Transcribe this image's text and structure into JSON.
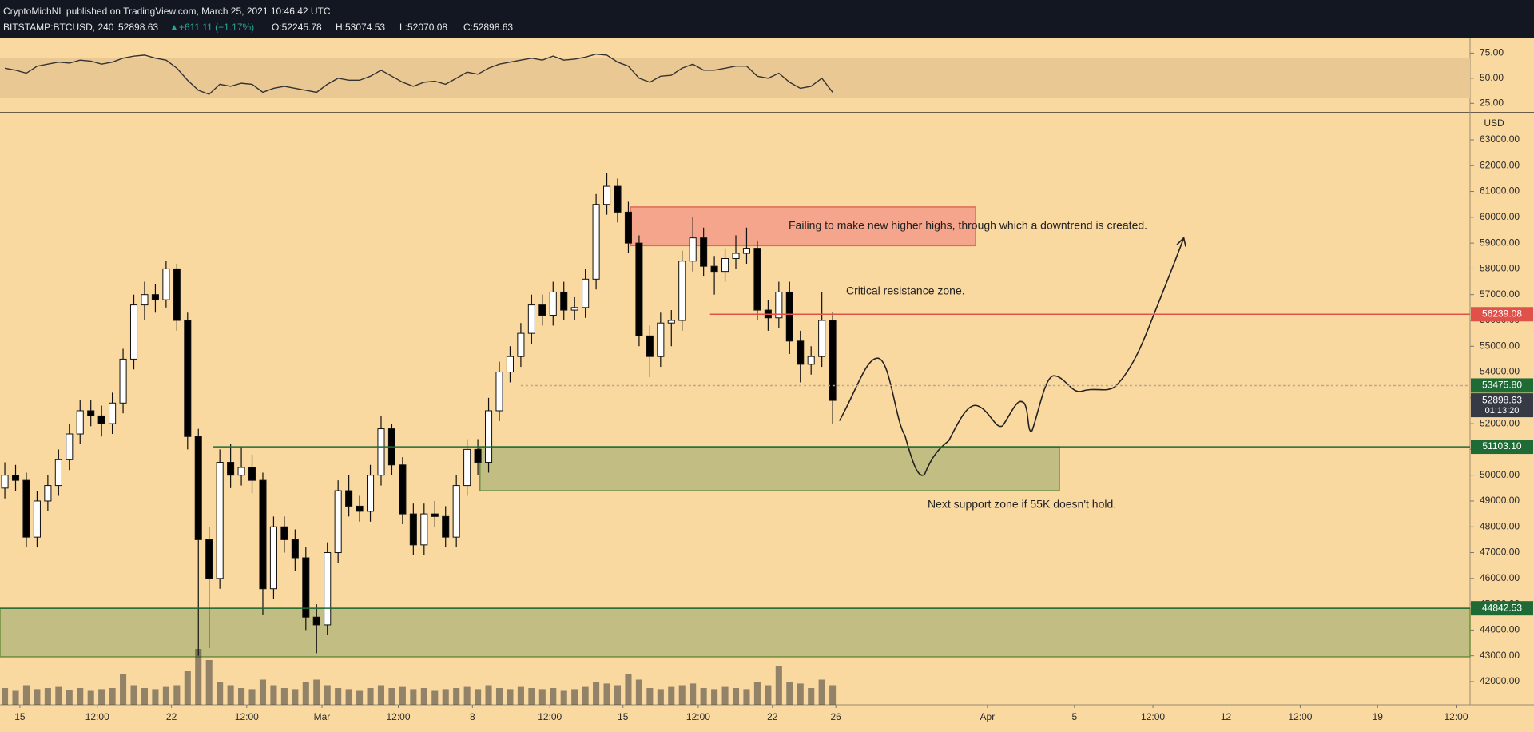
{
  "header": {
    "publisher": "CryptoMichNL published on TradingView.com, March 25, 2021 10:46:42 UTC",
    "symbol": "BITSTAMP:BTCUSD, 240",
    "last": "52898.63",
    "change": "▲+611.11 (+1.17%)",
    "ohlc": [
      "O:52245.78",
      "H:53074.53",
      "L:52070.08",
      "C:52898.63"
    ]
  },
  "chart_data": {
    "type": "candlestick",
    "currency": "USD",
    "xlim": [
      -0.45,
      136.3
    ],
    "ylim": [
      41100,
      63960
    ],
    "xticks": [
      {
        "value": 1.4,
        "label": "15"
      },
      {
        "value": 8.6,
        "label": "12:00"
      },
      {
        "value": 15.5,
        "label": "22"
      },
      {
        "value": 22.5,
        "label": "12:00"
      },
      {
        "value": 29.5,
        "label": "Mar"
      },
      {
        "value": 36.6,
        "label": "12:00"
      },
      {
        "value": 43.5,
        "label": "8"
      },
      {
        "value": 50.7,
        "label": "12:00"
      },
      {
        "value": 57.5,
        "label": "15"
      },
      {
        "value": 64.5,
        "label": "12:00"
      },
      {
        "value": 71.4,
        "label": "22"
      },
      {
        "value": 77.3,
        "label": "26"
      },
      {
        "value": 91.4,
        "label": "Apr"
      },
      {
        "value": 99.5,
        "label": "5"
      },
      {
        "value": 106.8,
        "label": "12:00"
      },
      {
        "value": 113.6,
        "label": "12"
      },
      {
        "value": 120.5,
        "label": "12:00"
      },
      {
        "value": 127.7,
        "label": "19"
      },
      {
        "value": 135,
        "label": "12:00"
      }
    ],
    "yticks": [
      {
        "value": 42000,
        "label": "42000.00"
      },
      {
        "value": 43000,
        "label": "43000.00"
      },
      {
        "value": 44000,
        "label": "44000.00"
      },
      {
        "value": 45000,
        "label": "45000.00"
      },
      {
        "value": 46000,
        "label": "46000.00"
      },
      {
        "value": 47000,
        "label": "47000.00"
      },
      {
        "value": 48000,
        "label": "48000.00"
      },
      {
        "value": 49000,
        "label": "49000.00"
      },
      {
        "value": 50000,
        "label": "50000.00"
      },
      {
        "value": 51000,
        "label": "51000.00"
      },
      {
        "value": 52000,
        "label": "52000.00"
      },
      {
        "value": 53000,
        "label": "53000.00"
      },
      {
        "value": 54000,
        "label": "54000.00"
      },
      {
        "value": 55000,
        "label": "55000.00"
      },
      {
        "value": 56000,
        "label": "56000.00"
      },
      {
        "value": 57000,
        "label": "57000.00"
      },
      {
        "value": 58000,
        "label": "58000.00"
      },
      {
        "value": 59000,
        "label": "59000.00"
      },
      {
        "value": 60000,
        "label": "60000.00"
      },
      {
        "value": 61000,
        "label": "61000.00"
      },
      {
        "value": 62000,
        "label": "62000.00"
      },
      {
        "value": 63000,
        "label": "63000.00"
      }
    ],
    "grid": false,
    "up_color": "#ffffff",
    "down_color": "#000000",
    "open": [
      49500,
      50000,
      49800,
      47600,
      49000,
      49600,
      50600,
      51600,
      52500,
      52300,
      52000,
      52800,
      54500,
      56600,
      57000,
      56800,
      58000,
      56000,
      51500,
      47500,
      46000,
      50500,
      50000,
      50300,
      49800,
      45600,
      48000,
      47500,
      46800,
      44500,
      44200,
      47000,
      49400,
      48800,
      48600,
      50000,
      51800,
      50400,
      48500,
      47300,
      48500,
      48400,
      47600,
      49600,
      51000,
      50500,
      52500,
      54000,
      54600,
      55500,
      56600,
      56200,
      57100,
      56400,
      56500,
      57600,
      60500,
      61200,
      60200,
      59000,
      55400,
      54600,
      55900,
      56000,
      58300,
      59200,
      58100,
      57900,
      58400,
      58600,
      58800,
      56400,
      56100,
      57100,
      55200,
      54300,
      54600,
      56000
    ],
    "high": [
      50500,
      50400,
      50100,
      49400,
      50000,
      51000,
      52000,
      52900,
      52900,
      52700,
      53200,
      54900,
      57000,
      57500,
      57400,
      58300,
      58200,
      56300,
      51800,
      48000,
      51000,
      51200,
      51100,
      50800,
      50100,
      48400,
      48400,
      47900,
      47200,
      45000,
      47400,
      49800,
      50000,
      49200,
      50400,
      52300,
      52000,
      50700,
      48900,
      48900,
      49000,
      48800,
      50000,
      51400,
      51400,
      53000,
      54400,
      55000,
      55900,
      57000,
      57000,
      57500,
      57500,
      56900,
      58000,
      60900,
      61700,
      61500,
      60600,
      59300,
      55800,
      56300,
      56400,
      58700,
      60000,
      59600,
      58500,
      58800,
      59300,
      59600,
      59100,
      56800,
      57500,
      57500,
      55600,
      55000,
      57100,
      56300
    ],
    "low": [
      49100,
      49400,
      47200,
      47200,
      48600,
      49200,
      50200,
      51200,
      51900,
      51500,
      51600,
      52400,
      54100,
      56000,
      56300,
      56500,
      55600,
      51000,
      43000,
      43300,
      45600,
      49500,
      49600,
      49300,
      44600,
      45200,
      47000,
      46300,
      44000,
      43100,
      43800,
      46600,
      48400,
      48200,
      48200,
      49600,
      50000,
      48100,
      46900,
      46900,
      48000,
      47200,
      47200,
      49200,
      50000,
      50100,
      52100,
      53600,
      54200,
      55100,
      55800,
      55800,
      56000,
      56000,
      56100,
      57200,
      60100,
      59800,
      58600,
      55000,
      53800,
      54200,
      55000,
      55600,
      57900,
      57700,
      57000,
      57500,
      58000,
      58200,
      56000,
      55600,
      55700,
      54700,
      53600,
      53900,
      54200,
      52000
    ],
    "close": [
      50000,
      49800,
      47600,
      49000,
      49600,
      50600,
      51600,
      52500,
      52300,
      52000,
      52800,
      54500,
      56600,
      57000,
      56800,
      58000,
      56000,
      51500,
      47500,
      46000,
      50500,
      50000,
      50300,
      49800,
      45600,
      48000,
      47500,
      46800,
      44500,
      44200,
      47000,
      49400,
      48800,
      48600,
      50000,
      51800,
      50400,
      48500,
      47300,
      48500,
      48400,
      47600,
      49600,
      51000,
      50500,
      52500,
      54000,
      54600,
      55500,
      56600,
      56200,
      57100,
      56400,
      56500,
      57600,
      60500,
      61200,
      60200,
      59000,
      55400,
      54600,
      55900,
      56000,
      58300,
      59200,
      58100,
      57900,
      58400,
      58600,
      58800,
      56400,
      56100,
      57100,
      55200,
      54300,
      54600,
      56000,
      52900
    ],
    "volume": [
      30,
      25,
      35,
      28,
      30,
      32,
      26,
      30,
      25,
      28,
      30,
      55,
      35,
      30,
      28,
      32,
      35,
      60,
      100,
      80,
      40,
      35,
      30,
      28,
      45,
      35,
      30,
      28,
      40,
      45,
      35,
      30,
      28,
      25,
      30,
      35,
      30,
      32,
      28,
      30,
      25,
      28,
      30,
      32,
      28,
      35,
      30,
      28,
      32,
      30,
      28,
      30,
      25,
      28,
      32,
      40,
      38,
      35,
      55,
      45,
      30,
      28,
      32,
      35,
      38,
      30,
      28,
      32,
      30,
      28,
      40,
      35,
      70,
      40,
      38,
      30,
      45,
      35
    ],
    "volume_lim": [
      0,
      100
    ],
    "volume_color": "#3a3a3a",
    "rsi": {
      "values": [
        60,
        58,
        55,
        62,
        64,
        66,
        65,
        68,
        67,
        64,
        66,
        70,
        72,
        73,
        70,
        68,
        60,
        48,
        38,
        34,
        44,
        42,
        45,
        44,
        36,
        40,
        42,
        40,
        38,
        36,
        44,
        50,
        48,
        48,
        52,
        58,
        52,
        46,
        42,
        46,
        47,
        44,
        50,
        56,
        54,
        60,
        64,
        66,
        68,
        70,
        68,
        72,
        68,
        69,
        71,
        74,
        73,
        66,
        62,
        50,
        46,
        52,
        53,
        60,
        64,
        58,
        58,
        60,
        62,
        62,
        52,
        50,
        55,
        46,
        40,
        42,
        50,
        36
      ],
      "ylim": [
        17.3,
        88.8
      ],
      "band": [
        30,
        70
      ],
      "yticks": [
        {
          "value": 25,
          "label": "25.00"
        },
        {
          "value": 50,
          "label": "50.00"
        },
        {
          "value": 75,
          "label": "75.00"
        }
      ],
      "color": "#333333"
    },
    "zones": [
      {
        "x": [
          58.2,
          90.3
        ],
        "y": [
          58900,
          60400
        ],
        "color": "#f4a58c",
        "border": "#e06a55"
      },
      {
        "x": [
          44.2,
          98.1
        ],
        "y": [
          49400,
          51103.1
        ],
        "color": "#c2bd82",
        "border": "#6f8e3d"
      },
      {
        "x": [
          -0.45,
          136.3
        ],
        "y": [
          42960,
          44842.53
        ],
        "color": "#c2bd82",
        "border": "#6f8e3d"
      }
    ],
    "levels": [
      {
        "value": 56239.08,
        "label": "56239.08",
        "color": "#e0514a",
        "line": "solid",
        "from": 65.6
      },
      {
        "value": 53475.8,
        "label": "53475.80",
        "color": "#1e6b36",
        "line": "dashed",
        "from": 48
      },
      {
        "value": 52898.63,
        "label": "52898.63",
        "sublabel": "01:13:20",
        "color": "#363a45",
        "line": "none"
      },
      {
        "value": 51103.1,
        "label": "51103.10",
        "color": "#1e6b36",
        "line": "solid",
        "from": 19.4
      },
      {
        "value": 44842.53,
        "label": "44842.53",
        "color": "#1e6b36",
        "line": "solid",
        "from": -0.45
      }
    ],
    "annotations": [
      "Failing to make new higher highs, through which a downtrend is created.",
      "Critical resistance zone.",
      "Next support zone if 55K doesn't hold."
    ]
  }
}
